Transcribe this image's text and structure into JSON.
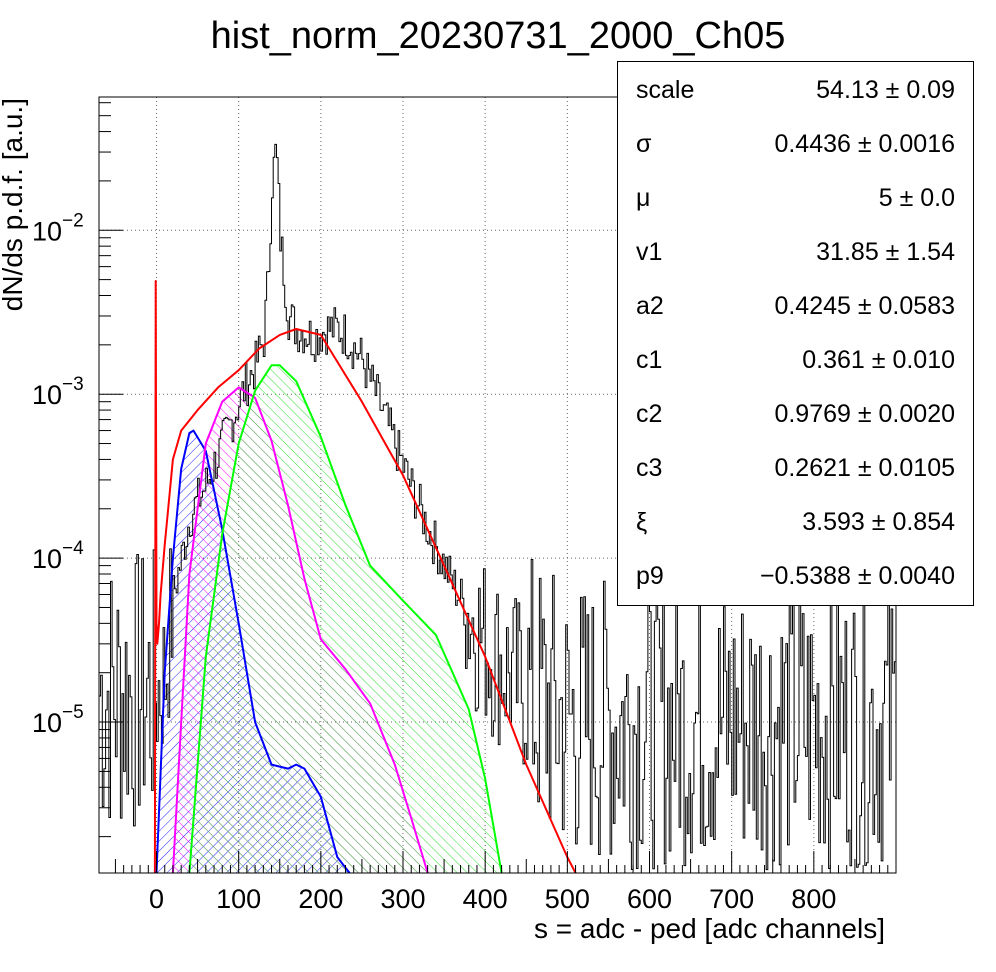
{
  "chart_data": {
    "type": "line",
    "title": "hist_norm_20230731_2000_Ch05",
    "xlabel": "s = adc - ped [adc channels]",
    "ylabel": "dN/ds p.d.f. [a.u.]",
    "y_scale": "log",
    "xlim": [
      -70,
      900
    ],
    "ylim": [
      1.2e-06,
      0.065
    ],
    "grid": true,
    "x_ticks": [
      "0",
      "100",
      "200",
      "300",
      "400",
      "500",
      "600",
      "700",
      "800"
    ],
    "y_ticks": [
      {
        "base": "10",
        "exp": "−5",
        "value": 1e-05
      },
      {
        "base": "10",
        "exp": "−4",
        "value": 0.0001
      },
      {
        "base": "10",
        "exp": "−3",
        "value": 0.001
      },
      {
        "base": "10",
        "exp": "−2",
        "value": 0.01
      }
    ],
    "series": [
      {
        "role": "data histogram",
        "color": "#000000",
        "x": [
          0,
          10,
          20,
          30,
          40,
          60,
          80,
          100,
          110,
          120,
          130,
          135,
          140,
          145,
          150,
          160,
          170,
          180,
          190,
          200,
          210,
          220,
          230,
          250,
          270,
          300,
          330,
          360,
          400,
          450,
          500,
          550,
          600,
          700,
          800,
          900
        ],
        "y": [
          1.5e-05,
          2e-05,
          6e-05,
          0.0001,
          0.00018,
          0.00028,
          0.0005,
          0.0009,
          0.0012,
          0.0015,
          0.0022,
          0.005,
          0.02,
          0.032,
          0.009,
          0.003,
          0.0025,
          0.0024,
          0.0022,
          0.0024,
          0.0025,
          0.0025,
          0.0023,
          0.0016,
          0.0009,
          0.00036,
          0.00015,
          7e-05,
          3e-05,
          1.5e-05,
          1e-05,
          1e-05,
          1e-05,
          1e-05,
          1e-05,
          1e-05
        ]
      },
      {
        "role": "total fit",
        "color": "#ff0000",
        "x": [
          -2,
          -1,
          0,
          1,
          3,
          5,
          10,
          20,
          30,
          50,
          75,
          100,
          125,
          150,
          170,
          200,
          250,
          300,
          350,
          400,
          450,
          500,
          510
        ],
        "y": [
          1.2e-06,
          0.0049,
          4e-05,
          3e-05,
          4e-05,
          6e-05,
          0.00012,
          0.0004,
          0.0006,
          0.0008,
          0.0011,
          0.0014,
          0.0019,
          0.0023,
          0.0025,
          0.0023,
          0.0009,
          0.00032,
          9e-05,
          2.5e-05,
          5.5e-06,
          1.5e-06,
          1.2e-06
        ]
      },
      {
        "role": "component 1",
        "color": "#0000ff",
        "fill": "hatched",
        "x": [
          0,
          10,
          20,
          30,
          40,
          45,
          60,
          80,
          100,
          120,
          140,
          160,
          170,
          180,
          200,
          220,
          235
        ],
        "y": [
          1.2e-06,
          2e-05,
          0.0001,
          0.00035,
          0.00058,
          0.0006,
          0.00045,
          0.00015,
          4e-05,
          1e-05,
          5.5e-06,
          5.2e-06,
          5.5e-06,
          5.2e-06,
          3.5e-06,
          1.5e-06,
          1.2e-06
        ]
      },
      {
        "role": "component 2",
        "color": "#ff00ff",
        "fill": "hatched",
        "x": [
          20,
          30,
          40,
          60,
          80,
          100,
          120,
          140,
          160,
          180,
          200,
          230,
          260,
          290,
          310,
          330
        ],
        "y": [
          1.2e-06,
          1e-05,
          8e-05,
          0.0005,
          0.0009,
          0.0011,
          0.00095,
          0.00052,
          0.00021,
          7.5e-05,
          3.2e-05,
          2.1e-05,
          1.3e-05,
          5.5e-06,
          2.6e-06,
          1.2e-06
        ]
      },
      {
        "role": "component 3",
        "color": "#00ff00",
        "fill": "hatched",
        "x": [
          40,
          60,
          80,
          100,
          120,
          140,
          150,
          170,
          200,
          230,
          260,
          300,
          340,
          380,
          400,
          420
        ],
        "y": [
          1.2e-06,
          2.5e-05,
          0.00014,
          0.0005,
          0.00105,
          0.0015,
          0.0015,
          0.0012,
          0.00055,
          0.00021,
          9e-05,
          5.5e-05,
          3.4e-05,
          1.2e-05,
          4.5e-06,
          1.2e-06
        ]
      }
    ]
  },
  "stats": [
    {
      "name": "scale",
      "value": "54.13 ± 0.09"
    },
    {
      "name": "σ",
      "value": "0.4436 ± 0.0016"
    },
    {
      "name": "μ",
      "value": "5 ± 0.0"
    },
    {
      "name": "v1",
      "value": "31.85 ± 1.54"
    },
    {
      "name": "a2",
      "value": "0.4245 ± 0.0583"
    },
    {
      "name": "c1",
      "value": "0.361 ± 0.010"
    },
    {
      "name": "c2",
      "value": "0.9769 ± 0.0020"
    },
    {
      "name": "c3",
      "value": "0.2621 ± 0.0105"
    },
    {
      "name": "ξ",
      "value": "3.593 ± 0.854"
    },
    {
      "name": "p9",
      "value": "−0.5388 ± 0.0040"
    }
  ]
}
